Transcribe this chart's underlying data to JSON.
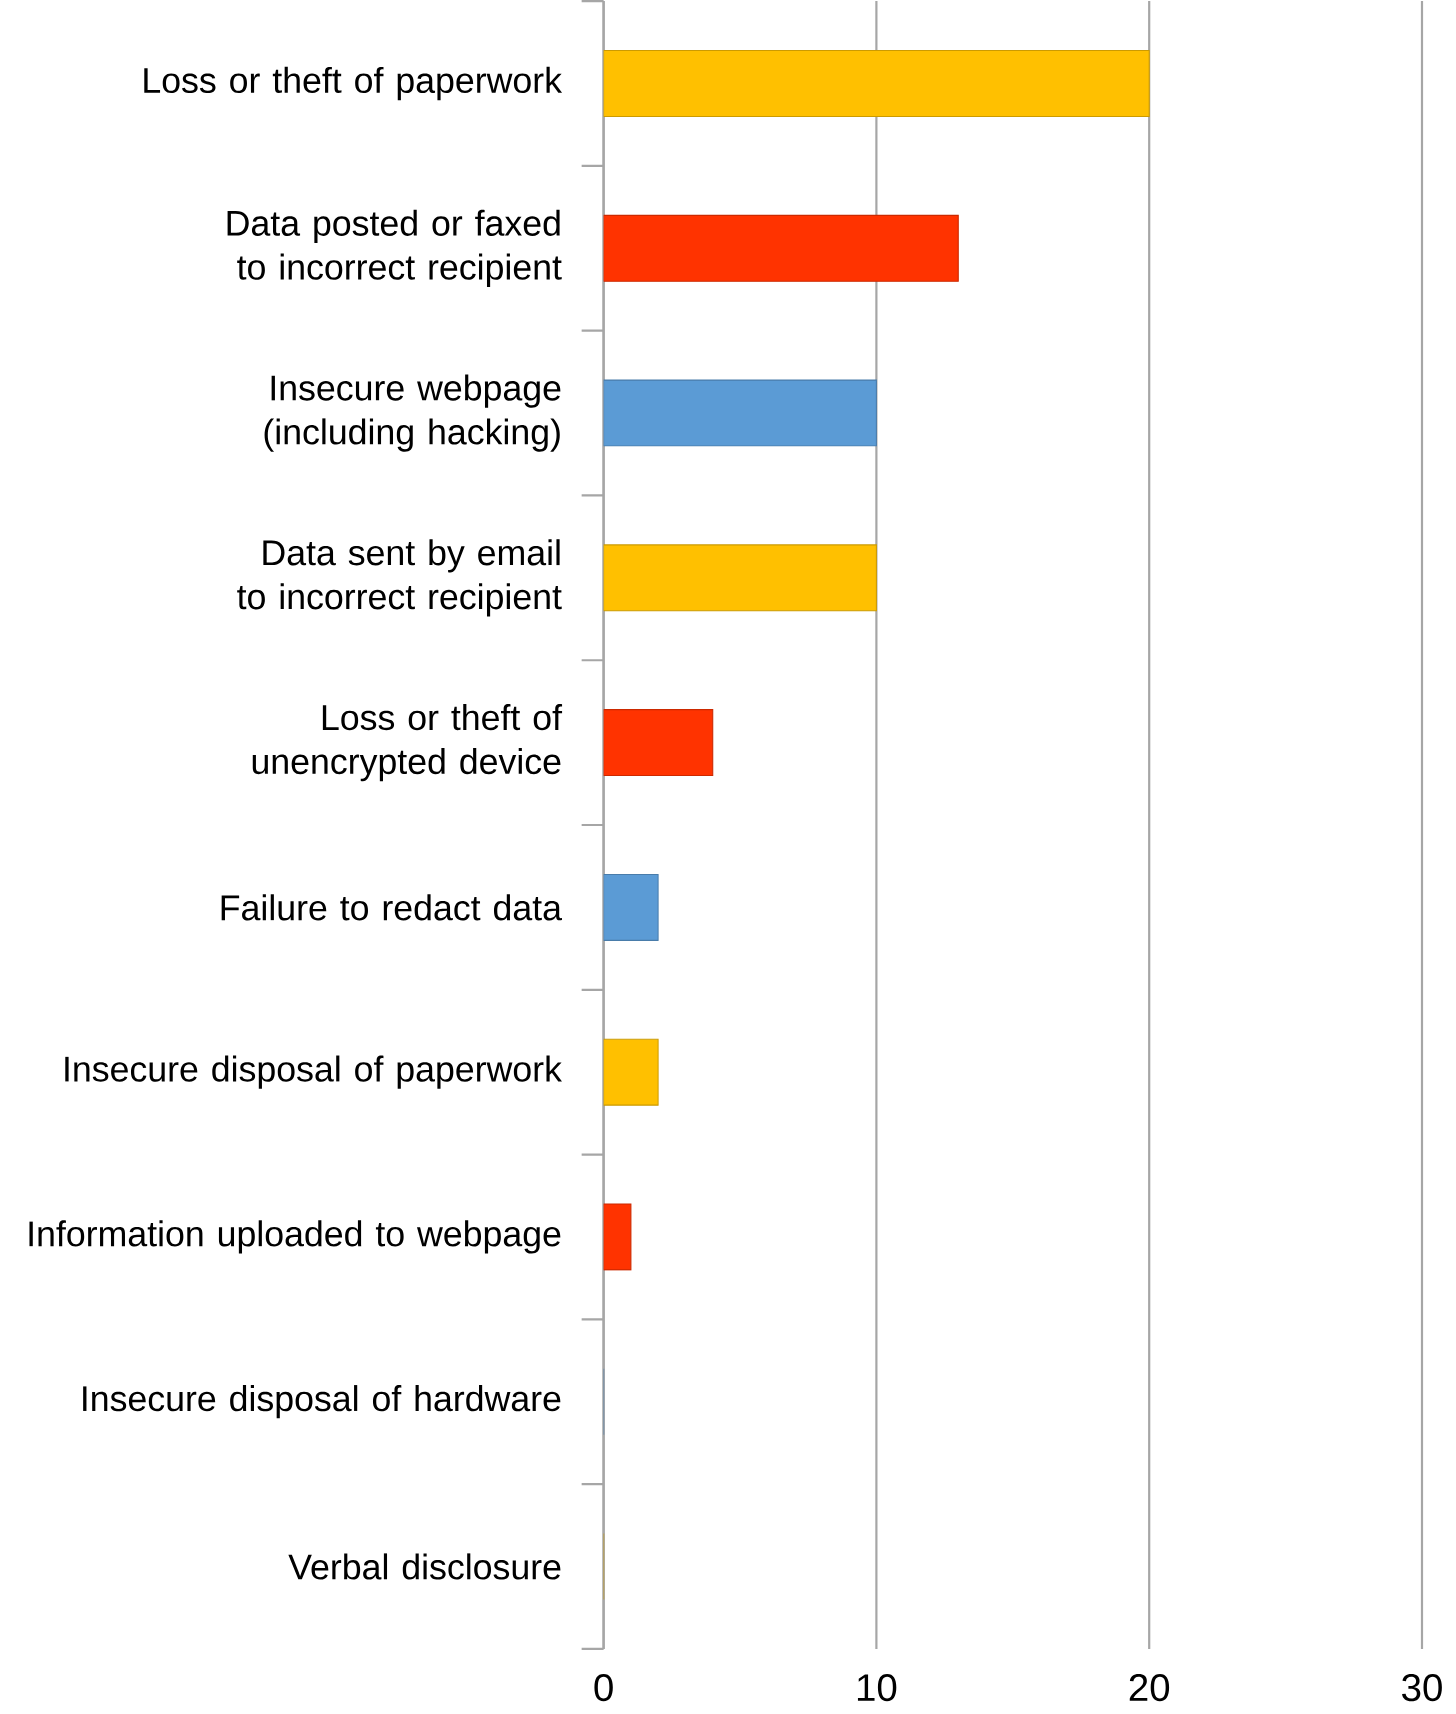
{
  "chart_data": {
    "type": "bar",
    "orientation": "horizontal",
    "categories": [
      "Loss or theft of paperwork",
      "Data posted or faxed to incorrect recipient",
      "Insecure webpage (including hacking)",
      "Data sent by email to incorrect recipient",
      "Loss or theft of unencrypted device",
      "Failure to redact data",
      "Insecure disposal of paperwork",
      "Information uploaded to webpage",
      "Insecure disposal of hardware",
      "Verbal disclosure"
    ],
    "values": [
      20,
      13,
      10,
      10,
      4,
      2,
      2,
      1,
      0,
      0
    ],
    "colors": [
      "#ffc000",
      "#ff3300",
      "#5b9bd5",
      "#ffc000",
      "#ff3300",
      "#5b9bd5",
      "#ffc000",
      "#ff3300",
      "#5b9bd5",
      "#ffc000"
    ],
    "xlim": [
      0,
      30
    ],
    "xticks": [
      0,
      10,
      20,
      30
    ],
    "grid": "x"
  }
}
